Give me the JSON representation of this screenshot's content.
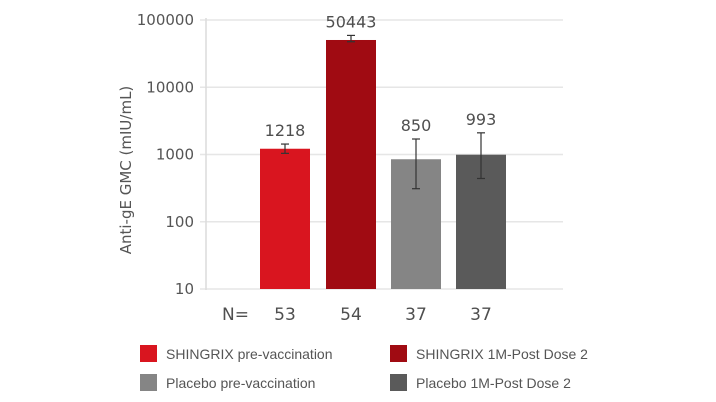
{
  "chart_data": {
    "type": "bar",
    "title": "",
    "xlabel": "",
    "ylabel": "Anti-gE GMC (mIU/mL)",
    "yscale": "log",
    "ylim": [
      10,
      100000
    ],
    "yticks": [
      "10",
      "100",
      "1000",
      "10000",
      "100000"
    ],
    "grid": true,
    "legend_position": "bottom",
    "categories": [
      "SHINGRIX pre-vaccination",
      "SHINGRIX 1M-Post Dose 2",
      "Placebo pre-vaccination",
      "Placebo 1M-Post Dose 2"
    ],
    "values": [
      1218,
      50443,
      850,
      993
    ],
    "value_labels": [
      "1218",
      "50443",
      "850",
      "993"
    ],
    "error_bars": [
      {
        "low": 1040,
        "high": 1430
      },
      {
        "low": 47500,
        "high": 59000
      },
      {
        "low": 310,
        "high": 1700
      },
      {
        "low": 440,
        "high": 2100
      }
    ],
    "n_prefix": "N=",
    "n_values": [
      "53",
      "54",
      "37",
      "37"
    ],
    "colors": [
      "#d9151f",
      "#a00b12",
      "#858585",
      "#5a5a5a"
    ]
  },
  "legend": [
    {
      "label": "SHINGRIX pre-vaccination",
      "color": "#d9151f"
    },
    {
      "label": "SHINGRIX 1M-Post Dose 2",
      "color": "#a00b12"
    },
    {
      "label": "Placebo pre-vaccination",
      "color": "#858585"
    },
    {
      "label": "Placebo 1M-Post Dose 2",
      "color": "#5a5a5a"
    }
  ]
}
